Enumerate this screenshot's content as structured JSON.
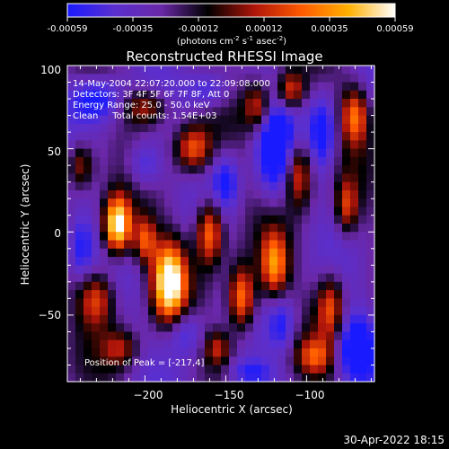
{
  "colorbar": {
    "ticks": [
      "-0.00059",
      "-0.00035",
      "-0.00012",
      "0.00012",
      "0.00035",
      "0.00059"
    ],
    "units_main": "(photons cm",
    "units_sup1": "-2",
    "units_mid": " s",
    "units_sup2": "-1",
    "units_mid2": " asec",
    "units_sup3": "-2",
    "units_end": ")",
    "palette": [
      "#1a1aff",
      "#5a2fd0",
      "#6a28a8",
      "#000000",
      "#b0150a",
      "#ff5a00",
      "#ffb000",
      "#ffffff"
    ]
  },
  "info": {
    "time_range": "14-May-2004 22:07:20.000 to 22:09:08.000",
    "detectors": "Detectors: 3F 4F 5F 6F 7F 8F, Att 0",
    "energy": "Energy Range: 25.0 - 50.0 keV",
    "clean": "Clean     Total counts: 1.54E+03",
    "peak": "Position of Peak = [-217,4]"
  },
  "footer": {
    "timestamp": "30-Apr-2022 18:15"
  },
  "chart_data": {
    "type": "heatmap",
    "title": "Reconstructed RHESSI Image",
    "xlabel": "Heliocentric X (arcsec)",
    "ylabel": "Heliocentric Y (arcsec)",
    "xlim": [
      -248,
      -58
    ],
    "ylim": [
      -90,
      100
    ],
    "x_ticks": [
      -200,
      -150,
      -100
    ],
    "y_ticks": [
      100,
      50,
      0,
      -50
    ],
    "x_tick_labels": [
      "−200",
      "−150",
      "−100"
    ],
    "y_tick_labels": [
      "100",
      "50",
      "0",
      "−50"
    ],
    "colorbar_range": [
      -0.00059,
      0.00059
    ],
    "blobs": [
      {
        "x": -217,
        "y": 4,
        "sx": 6,
        "sy": 12,
        "amp": 1.0
      },
      {
        "x": -185,
        "y": -30,
        "sx": 7,
        "sy": 16,
        "amp": 0.95
      },
      {
        "x": -160,
        "y": 0,
        "sx": 6,
        "sy": 14,
        "amp": 0.65
      },
      {
        "x": -140,
        "y": -40,
        "sx": 6,
        "sy": 14,
        "amp": 0.7
      },
      {
        "x": -170,
        "y": 50,
        "sx": 8,
        "sy": 10,
        "amp": 0.55
      },
      {
        "x": -120,
        "y": -20,
        "sx": 6,
        "sy": 14,
        "amp": 0.6
      },
      {
        "x": -105,
        "y": 35,
        "sx": 6,
        "sy": 14,
        "amp": 0.55
      },
      {
        "x": -85,
        "y": -45,
        "sx": 6,
        "sy": 14,
        "amp": 0.5
      },
      {
        "x": -70,
        "y": 70,
        "sx": 6,
        "sy": 12,
        "amp": 0.55
      },
      {
        "x": -230,
        "y": -40,
        "sx": 8,
        "sy": 12,
        "amp": 0.5
      },
      {
        "x": -200,
        "y": 75,
        "sx": 10,
        "sy": 8,
        "amp": 0.45
      },
      {
        "x": -240,
        "y": 40,
        "sx": 6,
        "sy": 10,
        "amp": 0.45
      },
      {
        "x": -130,
        "y": 75,
        "sx": 6,
        "sy": 10,
        "amp": 0.45
      },
      {
        "x": -95,
        "y": -75,
        "sx": 8,
        "sy": 8,
        "amp": 0.4
      },
      {
        "x": -155,
        "y": -70,
        "sx": 6,
        "sy": 8,
        "amp": 0.4
      },
      {
        "x": -215,
        "y": -70,
        "sx": 8,
        "sy": 8,
        "amp": 0.35
      },
      {
        "x": -75,
        "y": 15,
        "sx": 5,
        "sy": 12,
        "amp": 0.45
      },
      {
        "x": -110,
        "y": 85,
        "sx": 6,
        "sy": 8,
        "amp": 0.5
      },
      {
        "x": -200,
        "y": -5,
        "sx": 5,
        "sy": 10,
        "amp": 0.5
      }
    ],
    "troughs": [
      {
        "x": -230,
        "y": 80,
        "sx": 12,
        "sy": 10,
        "amp": 0.8
      },
      {
        "x": -120,
        "y": 50,
        "sx": 8,
        "sy": 20,
        "amp": 0.9
      },
      {
        "x": -70,
        "y": -70,
        "sx": 8,
        "sy": 14,
        "amp": 0.9
      },
      {
        "x": -90,
        "y": 60,
        "sx": 6,
        "sy": 16,
        "amp": 0.7
      },
      {
        "x": -200,
        "y": 40,
        "sx": 8,
        "sy": 10,
        "amp": 0.6
      },
      {
        "x": -150,
        "y": 30,
        "sx": 6,
        "sy": 12,
        "amp": 0.6
      },
      {
        "x": -175,
        "y": -60,
        "sx": 8,
        "sy": 10,
        "amp": 0.55
      },
      {
        "x": -240,
        "y": -10,
        "sx": 6,
        "sy": 14,
        "amp": 0.6
      },
      {
        "x": -115,
        "y": -55,
        "sx": 6,
        "sy": 12,
        "amp": 0.6
      },
      {
        "x": -135,
        "y": -85,
        "sx": 10,
        "sy": 6,
        "amp": 0.55
      },
      {
        "x": -160,
        "y": 85,
        "sx": 10,
        "sy": 8,
        "amp": 0.55
      }
    ]
  }
}
